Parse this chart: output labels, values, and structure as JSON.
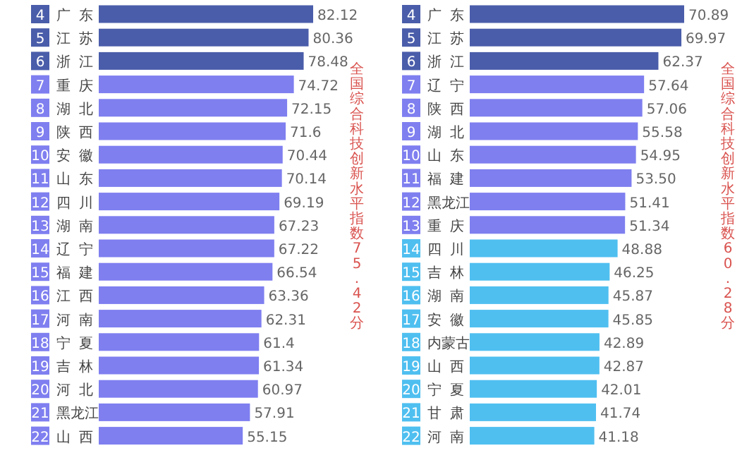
{
  "chart_data": [
    {
      "type": "bar",
      "orientation": "horizontal",
      "categories": [
        "4 广东",
        "5 江苏",
        "6 浙江",
        "7 重庆",
        "8 湖北",
        "9 陕西",
        "10 安徽",
        "11 山东",
        "12 四川",
        "13 湖南",
        "14 辽宁",
        "15 福建",
        "16 江西",
        "17 河南",
        "18 宁夏",
        "19 吉林",
        "20 河北",
        "21 黑龙江",
        "22 山西"
      ],
      "values": [
        82.12,
        80.36,
        78.48,
        74.72,
        72.15,
        71.6,
        70.44,
        70.14,
        69.19,
        67.23,
        67.22,
        66.54,
        63.36,
        62.31,
        61.4,
        61.34,
        60.97,
        57.91,
        55.15
      ],
      "value_labels": [
        "82.12",
        "80.36",
        "78.48",
        "74.72",
        "72.15",
        "71.6",
        "70.44",
        "70.14",
        "69.19",
        "67.23",
        "67.22",
        "66.54",
        "63.36",
        "62.31",
        "61.4",
        "61.34",
        "60.97",
        "57.91",
        "55.15"
      ],
      "colors": [
        "#4a5daa",
        "#4a5daa",
        "#4a5daa",
        "#7f7ff0",
        "#7f7ff0",
        "#7f7ff0",
        "#7f7ff0",
        "#7f7ff0",
        "#7f7ff0",
        "#7f7ff0",
        "#7f7ff0",
        "#7f7ff0",
        "#7f7ff0",
        "#7f7ff0",
        "#7f7ff0",
        "#7f7ff0",
        "#7f7ff0",
        "#7f7ff0",
        "#7f7ff0"
      ],
      "annotations": [
        "全国综合科技创新水平指数75.42分"
      ]
    },
    {
      "type": "bar",
      "orientation": "horizontal",
      "categories": [
        "4 广东",
        "5 江苏",
        "6 浙江",
        "7 辽宁",
        "8 陕西",
        "9 湖北",
        "10 山东",
        "11 福建",
        "12 黑龙江",
        "13 重庆",
        "14 四川",
        "15 吉林",
        "16 湖南",
        "17 安徽",
        "18 内蒙古",
        "19 山西",
        "20 宁夏",
        "21 甘肃",
        "22 河南"
      ],
      "values": [
        70.89,
        69.97,
        62.37,
        57.64,
        57.06,
        55.58,
        54.95,
        53.5,
        51.41,
        51.34,
        48.88,
        46.25,
        45.87,
        45.85,
        42.89,
        42.87,
        42.01,
        41.74,
        41.18
      ],
      "value_labels": [
        "70.89",
        "69.97",
        "62.37",
        "57.64",
        "57.06",
        "55.58",
        "54.95",
        "53.50",
        "51.41",
        "51.34",
        "48.88",
        "46.25",
        "45.87",
        "45.85",
        "42.89",
        "42.87",
        "42.01",
        "41.74",
        "41.18"
      ],
      "colors": [
        "#4a5daa",
        "#4a5daa",
        "#4a5daa",
        "#7f7ff0",
        "#7f7ff0",
        "#7f7ff0",
        "#7f7ff0",
        "#7f7ff0",
        "#7f7ff0",
        "#7f7ff0",
        "#4fbff0",
        "#4fbff0",
        "#4fbff0",
        "#4fbff0",
        "#4fbff0",
        "#4fbff0",
        "#4fbff0",
        "#4fbff0",
        "#4fbff0"
      ],
      "annotations": [
        "全国综合科技创新水平指数60.28分"
      ]
    }
  ]
}
